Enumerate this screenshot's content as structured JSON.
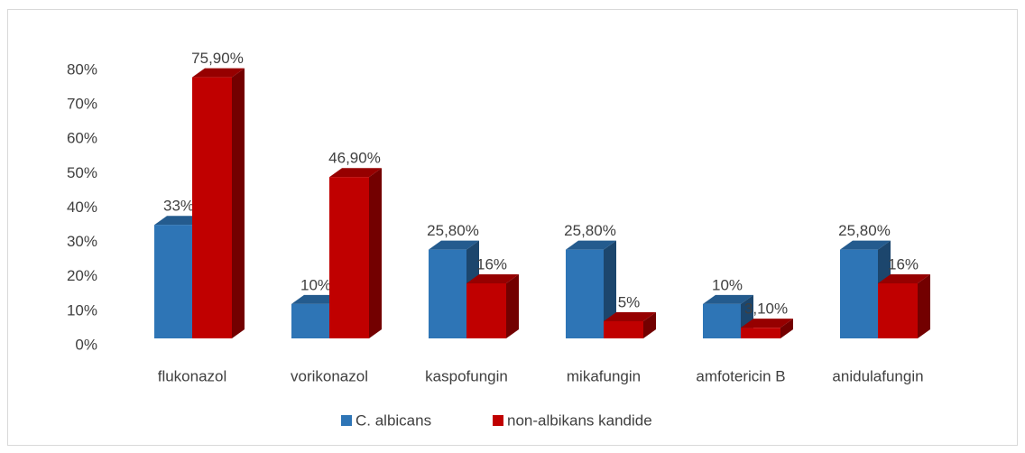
{
  "chart_data": {
    "type": "bar3d",
    "categories": [
      "flukonazol",
      "vorikonazol",
      "kaspofungin",
      "mikafungin",
      "amfotericin B",
      "anidulafungin"
    ],
    "series": [
      {
        "name": "C. albicans",
        "color": "#2e75b6",
        "values": [
          33,
          10,
          25.8,
          25.8,
          10,
          25.8
        ],
        "value_labels": [
          "33%",
          "10%",
          "25,80%",
          "25,80%",
          "10%",
          "25,80%"
        ]
      },
      {
        "name": "non-albikans kandide",
        "color": "#c00000",
        "values": [
          75.9,
          46.9,
          16,
          5,
          3.1,
          16
        ],
        "value_labels": [
          "75,90%",
          "46,90%",
          "16%",
          "5%",
          "3,10%",
          "16%"
        ]
      }
    ],
    "ylim": [
      0,
      80
    ],
    "yticks": [
      {
        "value": 0,
        "label": "0%"
      },
      {
        "value": 10,
        "label": "10%"
      },
      {
        "value": 20,
        "label": "20%"
      },
      {
        "value": 30,
        "label": "30%"
      },
      {
        "value": 40,
        "label": "40%"
      },
      {
        "value": 50,
        "label": "50%"
      },
      {
        "value": 60,
        "label": "60%"
      },
      {
        "value": 70,
        "label": "70%"
      },
      {
        "value": 80,
        "label": "80%"
      }
    ],
    "legend": "bottom"
  }
}
